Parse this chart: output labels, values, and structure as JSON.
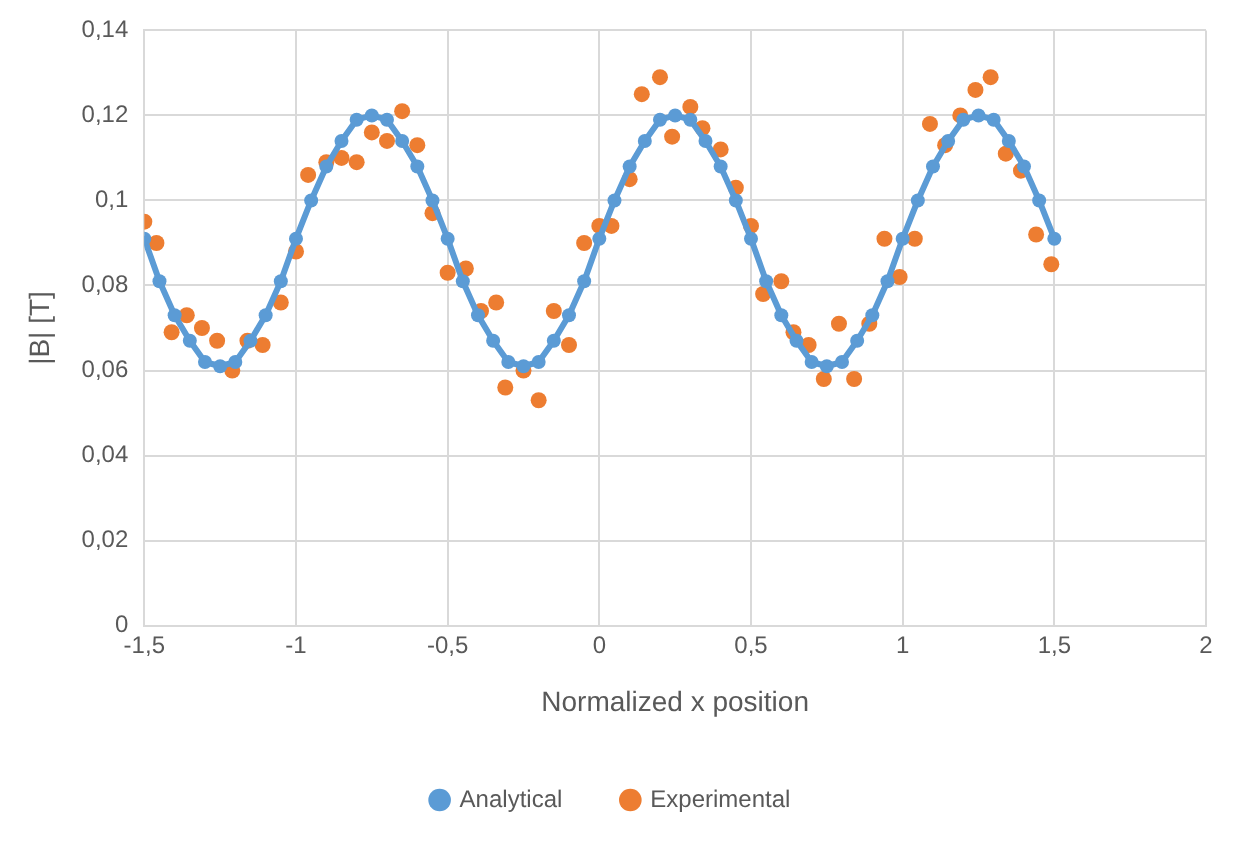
{
  "chart_data": {
    "type": "line",
    "xlabel": "Normalized x position",
    "ylabel": "|B| [T]",
    "xlim": [
      -1.5,
      2
    ],
    "xticks": [
      {
        "value": -1.5,
        "label": "-1,5"
      },
      {
        "value": -1,
        "label": "-1"
      },
      {
        "value": -0.5,
        "label": "-0,5"
      },
      0,
      {
        "value": 0.5,
        "label": "0,5"
      },
      1,
      {
        "value": 1.5,
        "label": "1,5"
      },
      2
    ],
    "ylim": [
      0,
      0.14
    ],
    "yticks": [
      0,
      {
        "value": 0.02,
        "label": "0,02"
      },
      {
        "value": 0.04,
        "label": "0,04"
      },
      {
        "value": 0.06,
        "label": "0,06"
      },
      {
        "value": 0.08,
        "label": "0,08"
      },
      {
        "value": 0.1,
        "label": "0,1"
      },
      {
        "value": 0.12,
        "label": "0,12"
      },
      {
        "value": 0.14,
        "label": "0,14"
      }
    ],
    "grid": true,
    "legend": "bottom",
    "marker": "circle",
    "series": [
      {
        "name": "Analytical",
        "type": "line",
        "color": "#5b9bd5",
        "x": [
          -1.5,
          -1.45,
          -1.4,
          -1.35,
          -1.3,
          -1.25,
          -1.2,
          -1.15,
          -1.1,
          -1.05,
          -1,
          -0.95,
          -0.9,
          -0.85,
          -0.8,
          -0.75,
          -0.7,
          -0.65,
          -0.6,
          -0.55,
          -0.5,
          -0.45,
          -0.4,
          -0.35,
          -0.3,
          -0.25,
          -0.2,
          -0.15,
          -0.1,
          -0.05,
          0,
          0.05,
          0.1,
          0.15,
          0.2,
          0.25,
          0.3,
          0.35,
          0.4,
          0.45,
          0.5,
          0.55,
          0.6,
          0.65,
          0.7,
          0.75,
          0.8,
          0.85,
          0.9,
          0.95,
          1,
          1.05,
          1.1,
          1.15,
          1.2,
          1.25,
          1.3,
          1.35,
          1.4,
          1.45,
          1.5
        ],
        "values": [
          0.091,
          0.081,
          0.073,
          0.067,
          0.062,
          0.061,
          0.062,
          0.067,
          0.073,
          0.081,
          0.091,
          0.1,
          0.108,
          0.114,
          0.119,
          0.12,
          0.119,
          0.114,
          0.108,
          0.1,
          0.091,
          0.081,
          0.073,
          0.067,
          0.062,
          0.061,
          0.062,
          0.067,
          0.073,
          0.081,
          0.091,
          0.1,
          0.108,
          0.114,
          0.119,
          0.12,
          0.119,
          0.114,
          0.108,
          0.1,
          0.091,
          0.081,
          0.073,
          0.067,
          0.062,
          0.061,
          0.062,
          0.067,
          0.073,
          0.081,
          0.091,
          0.1,
          0.108,
          0.114,
          0.119,
          0.12,
          0.119,
          0.114,
          0.108,
          0.1,
          0.091
        ]
      },
      {
        "name": "Experimental",
        "type": "scatter",
        "color": "#ed7d31",
        "x": [
          -1.5,
          -1.46,
          -1.41,
          -1.36,
          -1.31,
          -1.26,
          -1.21,
          -1.16,
          -1.11,
          -1.05,
          -1.0,
          -0.96,
          -0.9,
          -0.85,
          -0.8,
          -0.75,
          -0.7,
          -0.65,
          -0.6,
          -0.55,
          -0.5,
          -0.44,
          -0.39,
          -0.34,
          -0.31,
          -0.25,
          -0.2,
          -0.15,
          -0.1,
          -0.05,
          0,
          0.04,
          0.1,
          0.14,
          0.2,
          0.24,
          0.3,
          0.34,
          0.4,
          0.45,
          0.5,
          0.54,
          0.6,
          0.64,
          0.69,
          0.74,
          0.79,
          0.84,
          0.89,
          0.94,
          0.99,
          1.04,
          1.09,
          1.14,
          1.19,
          1.24,
          1.29,
          1.34,
          1.39,
          1.44,
          1.49
        ],
        "values": [
          0.095,
          0.09,
          0.069,
          0.073,
          0.07,
          0.067,
          0.06,
          0.067,
          0.066,
          0.076,
          0.088,
          0.106,
          0.109,
          0.11,
          0.109,
          0.116,
          0.114,
          0.121,
          0.113,
          0.097,
          0.083,
          0.084,
          0.074,
          0.076,
          0.056,
          0.06,
          0.053,
          0.074,
          0.066,
          0.09,
          0.094,
          0.094,
          0.105,
          0.125,
          0.129,
          0.115,
          0.122,
          0.117,
          0.112,
          0.103,
          0.094,
          0.078,
          0.081,
          0.069,
          0.066,
          0.058,
          0.071,
          0.058,
          0.071,
          0.091,
          0.082,
          0.091,
          0.118,
          0.113,
          0.12,
          0.126,
          0.129,
          0.111,
          0.107,
          0.092,
          0.085
        ]
      }
    ]
  }
}
